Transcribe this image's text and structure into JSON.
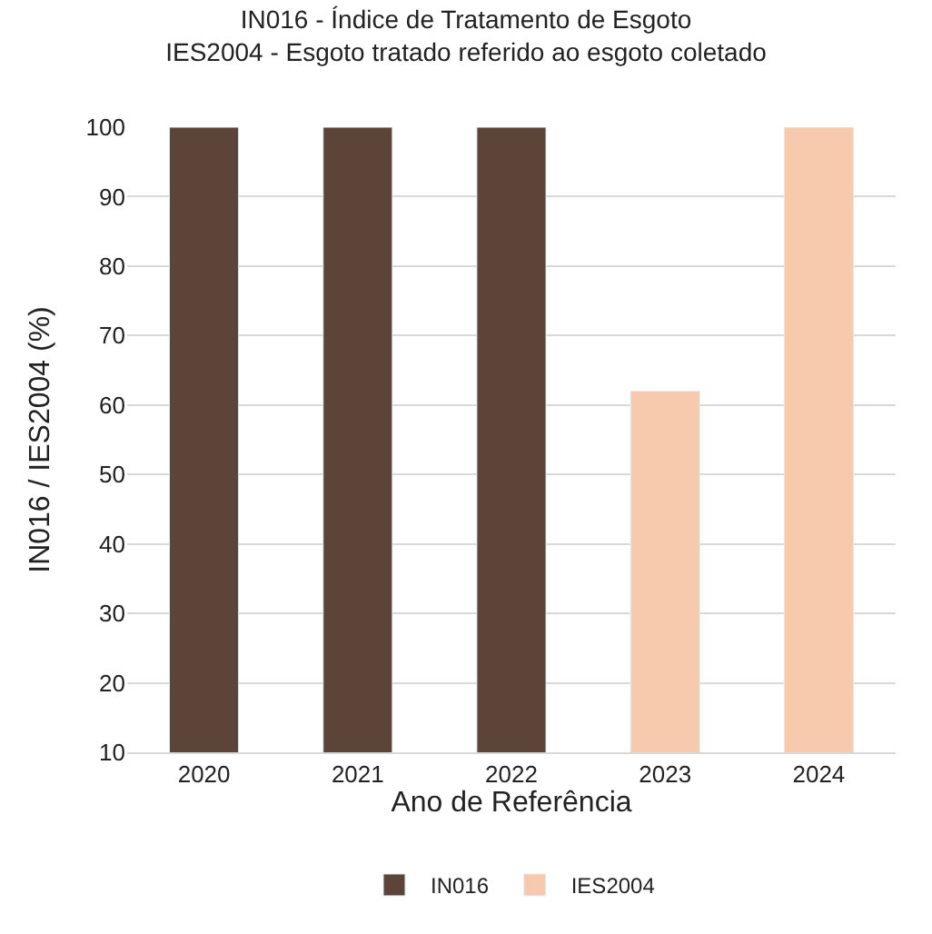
{
  "chart_data": {
    "type": "bar",
    "title": "IN016 - Índice de Tratamento de Esgoto",
    "subtitle": "IES2004 - Esgoto tratado referido ao esgoto coletado",
    "xlabel": "Ano de Referência",
    "ylabel": "IN016 / IES2004 (%)",
    "categories": [
      "2020",
      "2021",
      "2022",
      "2023",
      "2024"
    ],
    "series": [
      {
        "name": "IN016",
        "color": "#5c4438",
        "values": [
          100,
          100,
          100,
          null,
          null
        ]
      },
      {
        "name": "IES2004",
        "color": "#f7c9ad",
        "values": [
          null,
          null,
          null,
          62,
          100
        ]
      }
    ],
    "ylim": [
      10,
      100
    ],
    "yticks": [
      10,
      20,
      30,
      40,
      50,
      60,
      70,
      80,
      90,
      100
    ],
    "grid": "y",
    "legend": "bottom"
  }
}
